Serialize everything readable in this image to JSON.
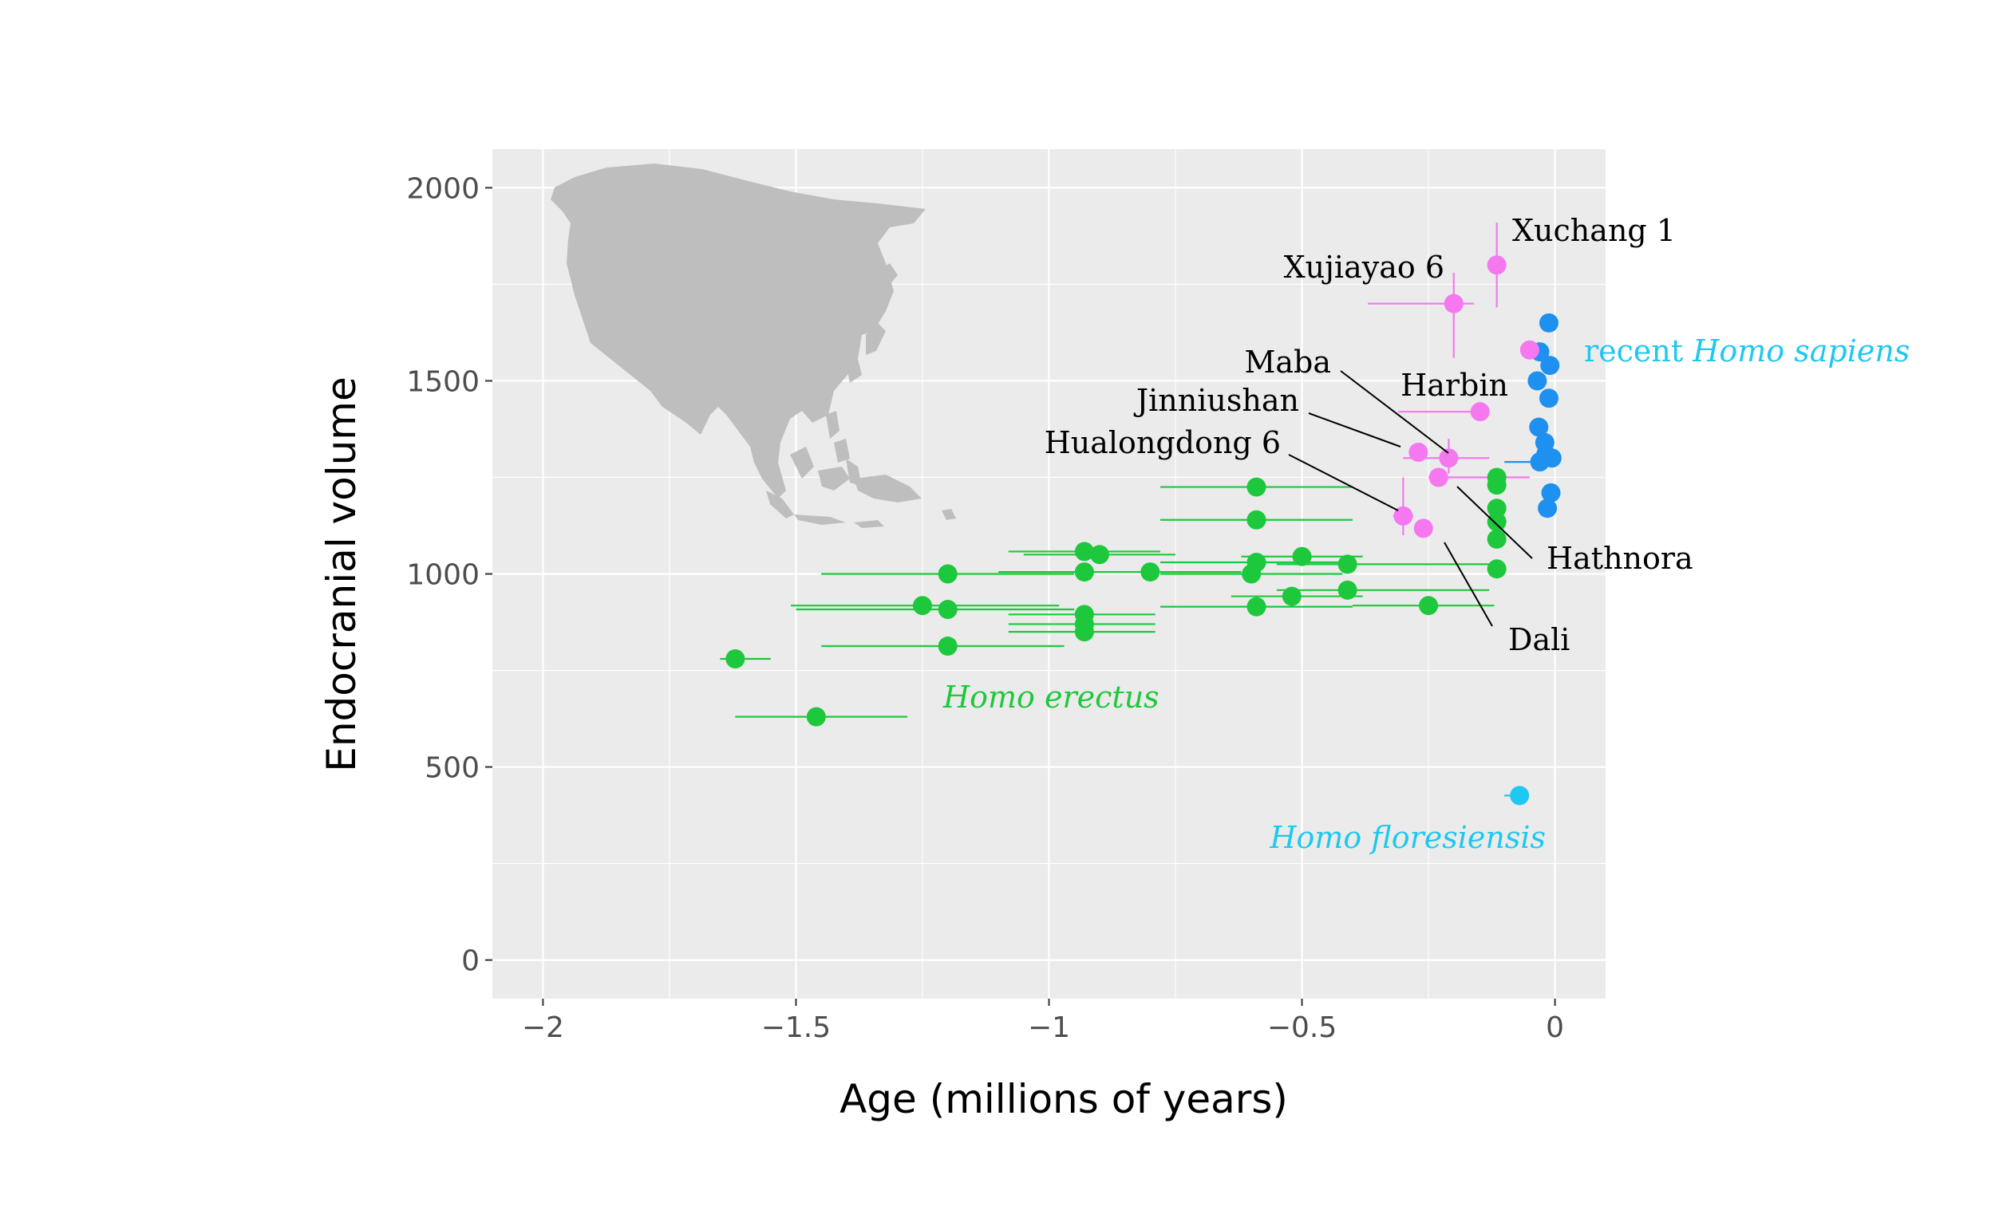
{
  "chart_data": {
    "type": "scatter",
    "xlabel": "Age (millions of years)",
    "ylabel": "Endocranial volume",
    "xlim": [
      -2.1,
      0.1
    ],
    "ylim": [
      -100,
      2100
    ],
    "xticks": [
      -2,
      -1.5,
      -1,
      -0.5,
      0
    ],
    "xtick_labels": [
      "−2",
      "−1.5",
      "−1",
      "−0.5",
      "0"
    ],
    "yticks": [
      0,
      500,
      1000,
      1500,
      2000
    ],
    "ytick_labels": [
      "0",
      "500",
      "1000",
      "1500",
      "2000"
    ],
    "grid": true,
    "colors": {
      "panel": "#ebebeb",
      "grid": "#ffffff",
      "erectus": "#1ec83c",
      "sapiens": "#1e90f0",
      "floresiensis": "#1ec8f0",
      "archaic": "#f578f0",
      "map": "#bebebe"
    },
    "group_labels": [
      {
        "text": "Homo erectus",
        "color": "#1ec83c",
        "x": -1.23,
        "y": 680,
        "anchor": "start"
      },
      {
        "text": "Homo floresiensis",
        "color": "#1ec8f0",
        "x": -0.06,
        "y": 310,
        "anchor": "end"
      },
      {
        "text_prefix": "recent ",
        "text": "Homo sapiens",
        "color": "#1ec8f0",
        "x": 0.04,
        "y": 1565,
        "anchor": "start"
      }
    ],
    "series": [
      {
        "group": "erectus",
        "points": [
          {
            "x": -1.62,
            "y": 780,
            "xmin": -1.65,
            "xmax": -1.55
          },
          {
            "x": -1.46,
            "y": 630,
            "xmin": -1.62,
            "xmax": -1.28
          },
          {
            "x": -1.2,
            "y": 1000,
            "xmin": -1.45,
            "xmax": -0.95
          },
          {
            "x": -1.25,
            "y": 918,
            "xmin": -1.51,
            "xmax": -0.98
          },
          {
            "x": -1.2,
            "y": 908,
            "xmin": -1.5,
            "xmax": -0.95
          },
          {
            "x": -1.2,
            "y": 813,
            "xmin": -1.45,
            "xmax": -0.97
          },
          {
            "x": -0.93,
            "y": 1058,
            "xmin": -1.08,
            "xmax": -0.78
          },
          {
            "x": -0.9,
            "y": 1050,
            "xmin": -1.05,
            "xmax": -0.75
          },
          {
            "x": -0.93,
            "y": 1005,
            "xmin": -1.1,
            "xmax": -0.8
          },
          {
            "x": -0.8,
            "y": 1005,
            "xmin": -0.95,
            "xmax": -0.62
          },
          {
            "x": -0.93,
            "y": 895,
            "xmin": -1.08,
            "xmax": -0.79
          },
          {
            "x": -0.93,
            "y": 870,
            "xmin": -1.08,
            "xmax": -0.79
          },
          {
            "x": -0.93,
            "y": 850,
            "xmin": -1.08,
            "xmax": -0.79
          },
          {
            "x": -0.59,
            "y": 1225,
            "xmin": -0.78,
            "xmax": -0.4
          },
          {
            "x": -0.59,
            "y": 1140,
            "xmin": -0.78,
            "xmax": -0.4
          },
          {
            "x": -0.59,
            "y": 1030,
            "xmin": -0.78,
            "xmax": -0.4
          },
          {
            "x": -0.6,
            "y": 1000,
            "xmin": -0.78,
            "xmax": -0.42
          },
          {
            "x": -0.5,
            "y": 1045,
            "xmin": -0.62,
            "xmax": -0.38
          },
          {
            "x": -0.41,
            "y": 1025,
            "xmin": -0.55,
            "xmax": -0.13
          },
          {
            "x": -0.41,
            "y": 958,
            "xmin": -0.55,
            "xmax": -0.13
          },
          {
            "x": -0.52,
            "y": 942,
            "xmin": -0.64,
            "xmax": -0.38
          },
          {
            "x": -0.59,
            "y": 915,
            "xmin": -0.78,
            "xmax": -0.4
          },
          {
            "x": -0.25,
            "y": 918,
            "xmin": -0.4,
            "xmax": -0.12
          },
          {
            "x": -0.115,
            "y": 1250,
            "xmin": -0.13,
            "xmax": -0.1
          },
          {
            "x": -0.115,
            "y": 1230,
            "xmin": -0.13,
            "xmax": -0.1
          },
          {
            "x": -0.115,
            "y": 1170,
            "xmin": -0.13,
            "xmax": -0.1
          },
          {
            "x": -0.115,
            "y": 1135,
            "xmin": -0.13,
            "xmax": -0.1
          },
          {
            "x": -0.115,
            "y": 1090,
            "xmin": -0.13,
            "xmax": -0.1
          },
          {
            "x": -0.115,
            "y": 1013,
            "xmin": -0.13,
            "xmax": -0.1
          }
        ]
      },
      {
        "group": "sapiens",
        "points": [
          {
            "x": -0.012,
            "y": 1650
          },
          {
            "x": -0.03,
            "y": 1575
          },
          {
            "x": -0.01,
            "y": 1540
          },
          {
            "x": -0.035,
            "y": 1500
          },
          {
            "x": -0.012,
            "y": 1455
          },
          {
            "x": -0.032,
            "y": 1380
          },
          {
            "x": -0.02,
            "y": 1340
          },
          {
            "x": -0.03,
            "y": 1290,
            "xmin": -0.1,
            "xmax": 0.0
          },
          {
            "x": -0.006,
            "y": 1300
          },
          {
            "x": -0.018,
            "y": 1310
          },
          {
            "x": -0.008,
            "y": 1210
          },
          {
            "x": -0.015,
            "y": 1170
          }
        ]
      },
      {
        "group": "floresiensis",
        "points": [
          {
            "x": -0.07,
            "y": 426,
            "xmin": -0.1,
            "xmax": -0.06
          }
        ]
      },
      {
        "group": "archaic",
        "points": [
          {
            "x": -0.115,
            "y": 1800,
            "ymin": 1690,
            "ymax": 1910,
            "label": "Xuchang 1"
          },
          {
            "x": -0.2,
            "y": 1700,
            "xmin": -0.37,
            "xmax": -0.16,
            "ymin": 1560,
            "ymax": 1780,
            "label": "Xujiayao 6"
          },
          {
            "x": -0.05,
            "y": 1580
          },
          {
            "x": -0.148,
            "y": 1420,
            "xmin": -0.31,
            "xmax": -0.14,
            "label": "Harbin"
          },
          {
            "x": -0.27,
            "y": 1315,
            "label": "Jinniushan"
          },
          {
            "x": -0.21,
            "y": 1300,
            "xmin": -0.3,
            "xmax": -0.13,
            "ymin": 1260,
            "ymax": 1350,
            "label": "Maba"
          },
          {
            "x": -0.23,
            "y": 1250,
            "xmin": -0.25,
            "xmax": -0.05,
            "label": "Hathnora"
          },
          {
            "x": -0.3,
            "y": 1150,
            "xmin": -0.32,
            "xmax": -0.28,
            "ymin": 1100,
            "ymax": 1250,
            "label": "Hualongdong 6"
          },
          {
            "x": -0.26,
            "y": 1118,
            "label": "Dali"
          }
        ]
      }
    ]
  }
}
